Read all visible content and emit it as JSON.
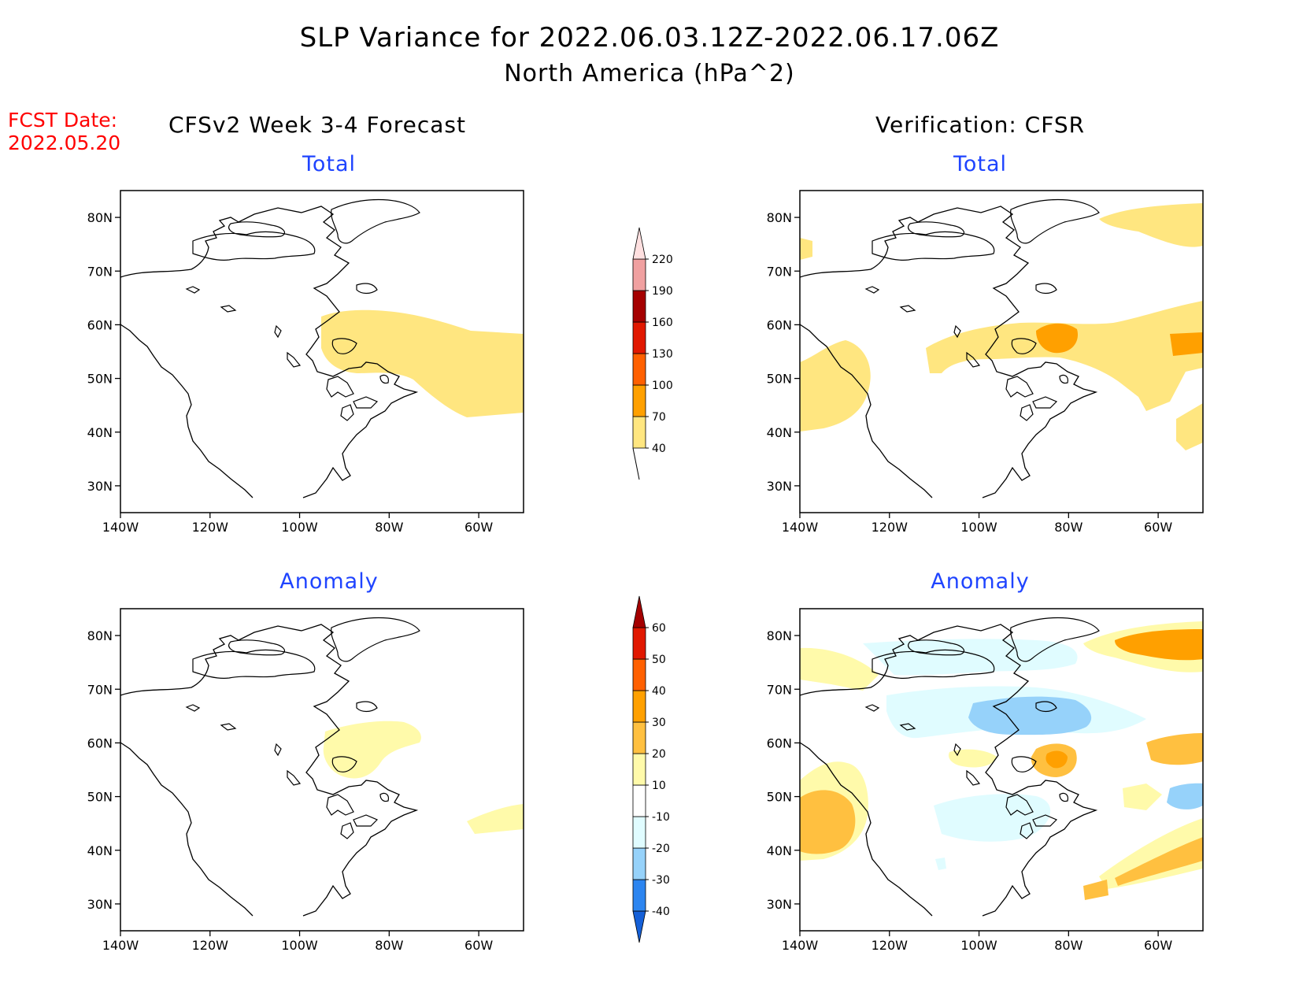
{
  "header": {
    "title": "SLP Variance for 2022.06.03.12Z-2022.06.17.06Z",
    "subtitle": "North America (hPa^2)",
    "fcst_label": "FCST Date:",
    "fcst_date": "2022.05.20"
  },
  "columns": {
    "left": "CFSv2 Week 3-4 Forecast",
    "right": "Verification: CFSR"
  },
  "panels": {
    "forecast_total": "Total",
    "forecast_anomaly": "Anomaly",
    "verification_total": "Total",
    "verification_anomaly": "Anomaly"
  },
  "axes": {
    "lat_labels": [
      "80N",
      "70N",
      "60N",
      "50N",
      "40N",
      "30N"
    ],
    "lon_labels": [
      "140W",
      "120W",
      "100W",
      "80W",
      "60W"
    ]
  },
  "total_colorbar": {
    "labels": [
      "40",
      "70",
      "100",
      "130",
      "160",
      "190",
      "220"
    ],
    "colors": [
      "#ffe680",
      "#ffa000",
      "#ff6000",
      "#e11800",
      "#a50000",
      "#f0a0a0",
      "#ffe0e0"
    ]
  },
  "anomaly_colorbar": {
    "labels": [
      "-40",
      "-30",
      "-20",
      "-10",
      "10",
      "20",
      "30",
      "40",
      "50",
      "60"
    ],
    "colors": [
      "#1560d8",
      "#2c85f0",
      "#96d2fa",
      "#e0fcff",
      "#ffffff",
      "#fffaaa",
      "#ffc040",
      "#ffa000",
      "#ff6000",
      "#e11800",
      "#a50000"
    ]
  }
}
